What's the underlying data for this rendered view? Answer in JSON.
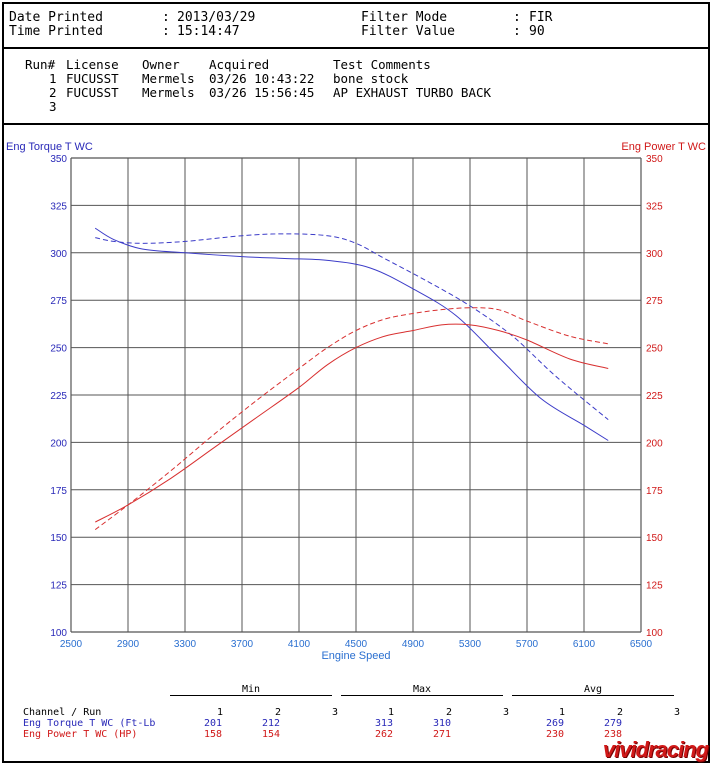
{
  "header": {
    "date_label": "Date Printed",
    "date_value": "2013/03/29",
    "time_label": "Time Printed",
    "time_value": "15:14:47",
    "filter_mode_label": "Filter Mode",
    "filter_mode_value": "FIR",
    "filter_value_label": "Filter Value",
    "filter_value_value": "90",
    "sep": ":"
  },
  "runs": {
    "columns": [
      "Run#",
      "License",
      "Owner",
      "Acquired",
      "Test Comments"
    ],
    "rows": [
      {
        "run": "1",
        "license": "FUCUSST",
        "owner": "Mermels",
        "acquired": "03/26 10:43:22",
        "comment": "bone stock"
      },
      {
        "run": "2",
        "license": "FUCUSST",
        "owner": "Mermels",
        "acquired": "03/26 15:56:45",
        "comment": "AP EXHAUST TURBO BACK"
      },
      {
        "run": "3",
        "license": "",
        "owner": "",
        "acquired": "",
        "comment": ""
      }
    ]
  },
  "colors": {
    "torque": "#3c3cc8",
    "power": "#d83030",
    "grid": "#555555"
  },
  "chart_data": {
    "type": "line",
    "xlabel": "Engine Speed",
    "ylabel_left": "Eng Torque T WC",
    "ylabel_right": "Eng Power T WC",
    "xlim": [
      2500,
      6500
    ],
    "ylim": [
      100,
      350
    ],
    "x_ticks": [
      2500,
      2900,
      3300,
      3700,
      4100,
      4500,
      4900,
      5300,
      5700,
      6100,
      6500
    ],
    "y_ticks": [
      100,
      125,
      150,
      175,
      200,
      225,
      250,
      275,
      300,
      325,
      350
    ],
    "grid": true,
    "series": [
      {
        "key": "torque_run1",
        "color_key": "torque",
        "dash": false,
        "x": [
          2670,
          2800,
          3000,
          3300,
          3700,
          4000,
          4300,
          4600,
          4900,
          5200,
          5500,
          5800,
          6100,
          6270
        ],
        "y": [
          313,
          307,
          302,
          300,
          298,
          297,
          296,
          292,
          281,
          267,
          245,
          223,
          209,
          201
        ]
      },
      {
        "key": "torque_run2",
        "color_key": "torque",
        "dash": true,
        "x": [
          2670,
          2800,
          3000,
          3300,
          3700,
          4000,
          4300,
          4500,
          4700,
          5000,
          5300,
          5600,
          5900,
          6270
        ],
        "y": [
          308,
          306,
          305,
          306,
          309,
          310,
          309,
          305,
          297,
          285,
          272,
          256,
          235,
          212
        ]
      },
      {
        "key": "power_run1",
        "color_key": "power",
        "dash": false,
        "x": [
          2670,
          2900,
          3200,
          3500,
          3800,
          4100,
          4300,
          4500,
          4700,
          4900,
          5100,
          5300,
          5500,
          5700,
          6000,
          6270
        ],
        "y": [
          158,
          167,
          181,
          197,
          213,
          229,
          241,
          250,
          256,
          259,
          262,
          262,
          259,
          254,
          244,
          239
        ]
      },
      {
        "key": "power_run2",
        "color_key": "power",
        "dash": true,
        "x": [
          2670,
          2900,
          3200,
          3500,
          3800,
          4100,
          4300,
          4500,
          4700,
          4900,
          5100,
          5300,
          5500,
          5700,
          6000,
          6270
        ],
        "y": [
          154,
          167,
          185,
          204,
          222,
          239,
          250,
          259,
          265,
          268,
          270,
          271,
          270,
          264,
          256,
          252
        ]
      }
    ]
  },
  "summary": {
    "channel_label": "Channel / Run",
    "groups": [
      "Min",
      "Max",
      "Avg"
    ],
    "run_numbers": [
      "1",
      "2",
      "3"
    ],
    "rows": [
      {
        "label": "Eng Torque T WC (Ft-Lb",
        "min": [
          "201",
          "212",
          ""
        ],
        "max": [
          "313",
          "310",
          ""
        ],
        "avg": [
          "269",
          "279",
          ""
        ]
      },
      {
        "label": "Eng Power T WC (HP)",
        "min": [
          "158",
          "154",
          ""
        ],
        "max": [
          "262",
          "271",
          ""
        ],
        "avg": [
          "230",
          "238",
          ""
        ]
      }
    ]
  },
  "logo_text": "vividracing"
}
